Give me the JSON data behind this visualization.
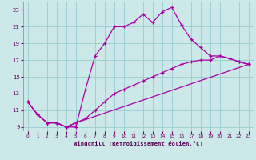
{
  "xlabel": "Windchill (Refroidissement éolien,°C)",
  "background_color": "#cce8e8",
  "grid_color": "#99cccc",
  "line_color": "#aa00aa",
  "xlim": [
    -0.5,
    23.5
  ],
  "ylim": [
    8.5,
    24.0
  ],
  "xticks": [
    0,
    1,
    2,
    3,
    4,
    5,
    6,
    7,
    8,
    9,
    10,
    11,
    12,
    13,
    14,
    15,
    16,
    17,
    18,
    19,
    20,
    21,
    22,
    23
  ],
  "yticks": [
    9,
    11,
    13,
    15,
    17,
    19,
    21,
    23
  ],
  "series1_x": [
    0,
    1,
    2,
    3,
    4,
    5,
    6,
    7,
    8,
    9,
    10,
    11,
    12,
    13,
    14,
    15,
    16,
    17,
    18,
    19,
    20,
    21,
    22,
    23
  ],
  "series1_y": [
    12.0,
    10.5,
    9.5,
    9.5,
    9.0,
    9.0,
    13.5,
    17.5,
    19.0,
    21.0,
    21.0,
    21.5,
    22.5,
    21.5,
    22.8,
    23.3,
    21.2,
    19.5,
    18.5,
    17.5,
    17.5,
    17.2,
    16.8,
    16.5
  ],
  "series2_x": [
    0,
    1,
    2,
    3,
    4,
    5,
    6,
    7,
    8,
    9,
    10,
    11,
    12,
    13,
    14,
    15,
    16,
    17,
    18,
    19,
    20,
    21,
    22,
    23
  ],
  "series2_y": [
    12.0,
    10.5,
    9.5,
    9.5,
    9.0,
    9.5,
    10.0,
    11.0,
    12.0,
    13.0,
    13.5,
    14.0,
    14.5,
    15.0,
    15.5,
    16.0,
    16.5,
    16.8,
    17.0,
    17.0,
    17.5,
    17.2,
    16.8,
    16.5
  ],
  "series3_x": [
    0,
    1,
    2,
    3,
    4,
    5,
    23
  ],
  "series3_y": [
    12.0,
    10.5,
    9.5,
    9.5,
    9.0,
    9.5,
    16.5
  ]
}
